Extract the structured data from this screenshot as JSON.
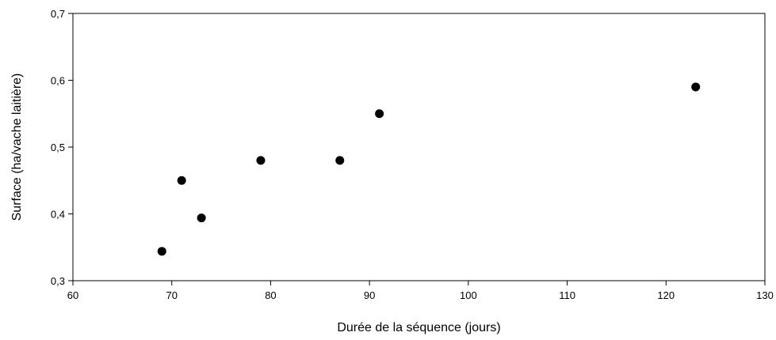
{
  "chart_data": {
    "type": "scatter",
    "title": "",
    "xlabel": "Durée de la séquence (jours)",
    "ylabel": "Surface (ha/vache laitière)",
    "xlim": [
      60,
      130
    ],
    "ylim": [
      0.3,
      0.7
    ],
    "x_ticks": [
      60,
      70,
      80,
      90,
      100,
      110,
      120,
      130
    ],
    "x_tick_labels": [
      "60",
      "70",
      "80",
      "90",
      "100",
      "110",
      "120",
      "130"
    ],
    "y_ticks": [
      0.3,
      0.4,
      0.5,
      0.6,
      0.7
    ],
    "y_tick_labels": [
      "0,3",
      "0,4",
      "0,5",
      "0,6",
      "0,7"
    ],
    "grid": false,
    "marker_color": "#000000",
    "points": [
      {
        "x": 69,
        "y": 0.344
      },
      {
        "x": 71,
        "y": 0.45
      },
      {
        "x": 73,
        "y": 0.394
      },
      {
        "x": 79,
        "y": 0.48
      },
      {
        "x": 87,
        "y": 0.48
      },
      {
        "x": 91,
        "y": 0.55
      },
      {
        "x": 123,
        "y": 0.59
      }
    ]
  }
}
